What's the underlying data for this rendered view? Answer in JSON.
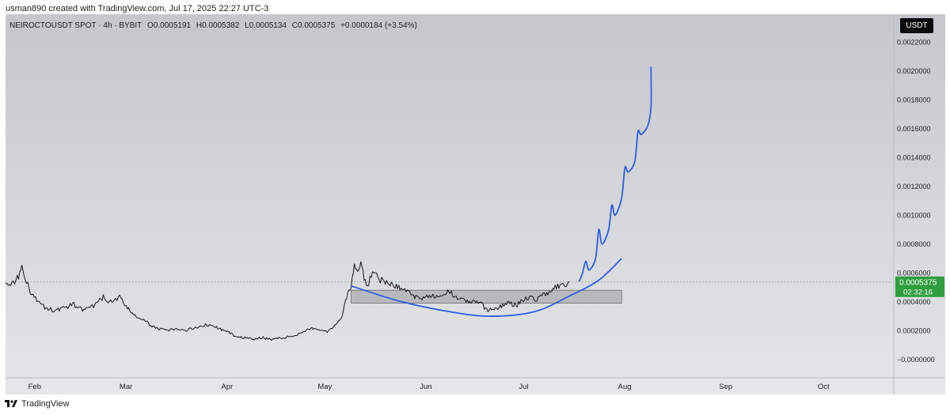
{
  "header": {
    "attribution": "usman890 created with TradingView.com, Jul 17, 2025 22:27 UTC-3"
  },
  "symbol_info": {
    "title": "NEIROCTOUSDT SPOT · 4h · BYBIT",
    "open": "O0.0005191",
    "high": "H0.0005382",
    "low": "L0.0005134",
    "close": "C0.0005375",
    "change": "+0.0000184 (+3.54%)"
  },
  "currency_label": "USDT",
  "price_label": {
    "value": "0.0005375",
    "countdown": "02:32:16",
    "color": "#2e9e3f"
  },
  "footer": {
    "brand": "TradingView"
  },
  "colors": {
    "price_line": "#161616",
    "projection": "#2f5ce8",
    "range_box": "#9a9a9a",
    "last_price": "#2e9e3f"
  },
  "chart_data": {
    "type": "line",
    "title": "NEIROCTOUSDT SPOT · 4h · BYBIT",
    "y_unit": "USDT",
    "x_range": [
      "2025-01-25",
      "2025-10-24"
    ],
    "ylim": [
      -0.0001,
      0.00235
    ],
    "y_ticks": [
      "0.0022000",
      "0.0020000",
      "0.0018000",
      "0.0016000",
      "0.0014000",
      "0.0012000",
      "0.0010000",
      "0.0008000",
      "0.0006000",
      "0.0004000",
      "0.0002000",
      "−0.0000000"
    ],
    "y_tick_values": [
      0.0022,
      0.002,
      0.0018,
      0.0016,
      0.0014,
      0.0012,
      0.001,
      0.0008,
      0.0006,
      0.0004,
      0.0002,
      0.0
    ],
    "x_ticks": [
      {
        "label": "Feb",
        "date": "2025-02-01"
      },
      {
        "label": "Mar",
        "date": "2025-03-01"
      },
      {
        "label": "Apr",
        "date": "2025-04-01"
      },
      {
        "label": "May",
        "date": "2025-05-01"
      },
      {
        "label": "Jun",
        "date": "2025-06-01"
      },
      {
        "label": "Jul",
        "date": "2025-07-01"
      },
      {
        "label": "Aug",
        "date": "2025-08-01"
      },
      {
        "label": "Sep",
        "date": "2025-09-01"
      },
      {
        "label": "Oct",
        "date": "2025-10-01"
      }
    ],
    "last_price": 0.0005375,
    "series": [
      {
        "type": "price",
        "points": [
          [
            "2025-01-25",
            0.00055
          ],
          [
            "2025-01-27",
            0.00052
          ],
          [
            "2025-01-29",
            0.00058
          ],
          [
            "2025-01-30",
            0.00065
          ],
          [
            "2025-01-31",
            0.00056
          ],
          [
            "2025-02-02",
            0.00045
          ],
          [
            "2025-02-04",
            0.0004
          ],
          [
            "2025-02-06",
            0.00036
          ],
          [
            "2025-02-09",
            0.00034
          ],
          [
            "2025-02-12",
            0.00036
          ],
          [
            "2025-02-15",
            0.00038
          ],
          [
            "2025-02-18",
            0.00034
          ],
          [
            "2025-02-21",
            0.00037
          ],
          [
            "2025-02-24",
            0.00043
          ],
          [
            "2025-02-27",
            0.00039
          ],
          [
            "2025-03-01",
            0.00045
          ],
          [
            "2025-03-03",
            0.00036
          ],
          [
            "2025-03-06",
            0.0003
          ],
          [
            "2025-03-09",
            0.00026
          ],
          [
            "2025-03-12",
            0.00022
          ],
          [
            "2025-03-15",
            0.0002
          ],
          [
            "2025-03-18",
            0.00021
          ],
          [
            "2025-03-21",
            0.0002
          ],
          [
            "2025-03-24",
            0.00022
          ],
          [
            "2025-03-27",
            0.00024
          ],
          [
            "2025-03-30",
            0.00023
          ],
          [
            "2025-04-02",
            0.0002
          ],
          [
            "2025-04-05",
            0.00017
          ],
          [
            "2025-04-08",
            0.00015
          ],
          [
            "2025-04-11",
            0.00014
          ],
          [
            "2025-04-14",
            0.00015
          ],
          [
            "2025-04-17",
            0.00014
          ],
          [
            "2025-04-20",
            0.00015
          ],
          [
            "2025-04-23",
            0.00016
          ],
          [
            "2025-04-26",
            0.00019
          ],
          [
            "2025-04-29",
            0.00022
          ],
          [
            "2025-05-01",
            0.0002
          ],
          [
            "2025-05-04",
            0.00019
          ],
          [
            "2025-05-06",
            0.00024
          ],
          [
            "2025-05-08",
            0.00028
          ],
          [
            "2025-05-09",
            0.00038
          ],
          [
            "2025-05-10",
            0.00045
          ],
          [
            "2025-05-11",
            0.0005
          ],
          [
            "2025-05-12",
            0.00068
          ],
          [
            "2025-05-13",
            0.0006
          ],
          [
            "2025-05-14",
            0.00066
          ],
          [
            "2025-05-15",
            0.00056
          ],
          [
            "2025-05-16",
            0.00051
          ],
          [
            "2025-05-18",
            0.00062
          ],
          [
            "2025-05-20",
            0.00055
          ],
          [
            "2025-05-23",
            0.00052
          ],
          [
            "2025-05-26",
            0.0005
          ],
          [
            "2025-05-29",
            0.00046
          ],
          [
            "2025-06-01",
            0.00042
          ],
          [
            "2025-06-04",
            0.00045
          ],
          [
            "2025-06-07",
            0.00042
          ],
          [
            "2025-06-10",
            0.00047
          ],
          [
            "2025-06-13",
            0.00043
          ],
          [
            "2025-06-16",
            0.0004
          ],
          [
            "2025-06-19",
            0.0004
          ],
          [
            "2025-06-22",
            0.00034
          ],
          [
            "2025-06-25",
            0.00036
          ],
          [
            "2025-06-28",
            0.00039
          ],
          [
            "2025-07-01",
            0.00038
          ],
          [
            "2025-07-04",
            0.00043
          ],
          [
            "2025-07-07",
            0.00042
          ],
          [
            "2025-07-10",
            0.00046
          ],
          [
            "2025-07-13",
            0.0005
          ],
          [
            "2025-07-16",
            0.00051
          ],
          [
            "2025-07-17",
            0.0005375
          ]
        ]
      },
      {
        "type": "projection",
        "points": [
          [
            "2025-07-20",
            0.00054
          ],
          [
            "2025-07-21",
            0.0006
          ],
          [
            "2025-07-22",
            0.00068
          ],
          [
            "2025-07-23",
            0.00062
          ],
          [
            "2025-07-25",
            0.0007
          ],
          [
            "2025-07-26",
            0.0009
          ],
          [
            "2025-07-27",
            0.0008
          ],
          [
            "2025-07-29",
            0.0009
          ],
          [
            "2025-07-30",
            0.00107
          ],
          [
            "2025-07-31",
            0.001
          ],
          [
            "2025-08-02",
            0.00112
          ],
          [
            "2025-08-03",
            0.00133
          ],
          [
            "2025-08-04",
            0.0013
          ],
          [
            "2025-08-06",
            0.00137
          ],
          [
            "2025-08-07",
            0.00158
          ],
          [
            "2025-08-08",
            0.00156
          ],
          [
            "2025-08-10",
            0.00162
          ],
          [
            "2025-08-11",
            0.00175
          ],
          [
            "2025-08-11",
            0.00203
          ]
        ]
      },
      {
        "type": "rounding_bottom",
        "points": [
          [
            "2025-05-11",
            0.00051
          ],
          [
            "2025-05-25",
            0.00041
          ],
          [
            "2025-06-08",
            0.00034
          ],
          [
            "2025-06-22",
            0.0003
          ],
          [
            "2025-07-06",
            0.00033
          ],
          [
            "2025-07-17",
            0.00044
          ],
          [
            "2025-07-26",
            0.00055
          ],
          [
            "2025-08-02",
            0.0007
          ]
        ]
      },
      {
        "type": "range_box",
        "date_range": [
          "2025-05-11",
          "2025-08-02"
        ],
        "price_range": [
          0.00039,
          0.00048
        ]
      }
    ]
  }
}
